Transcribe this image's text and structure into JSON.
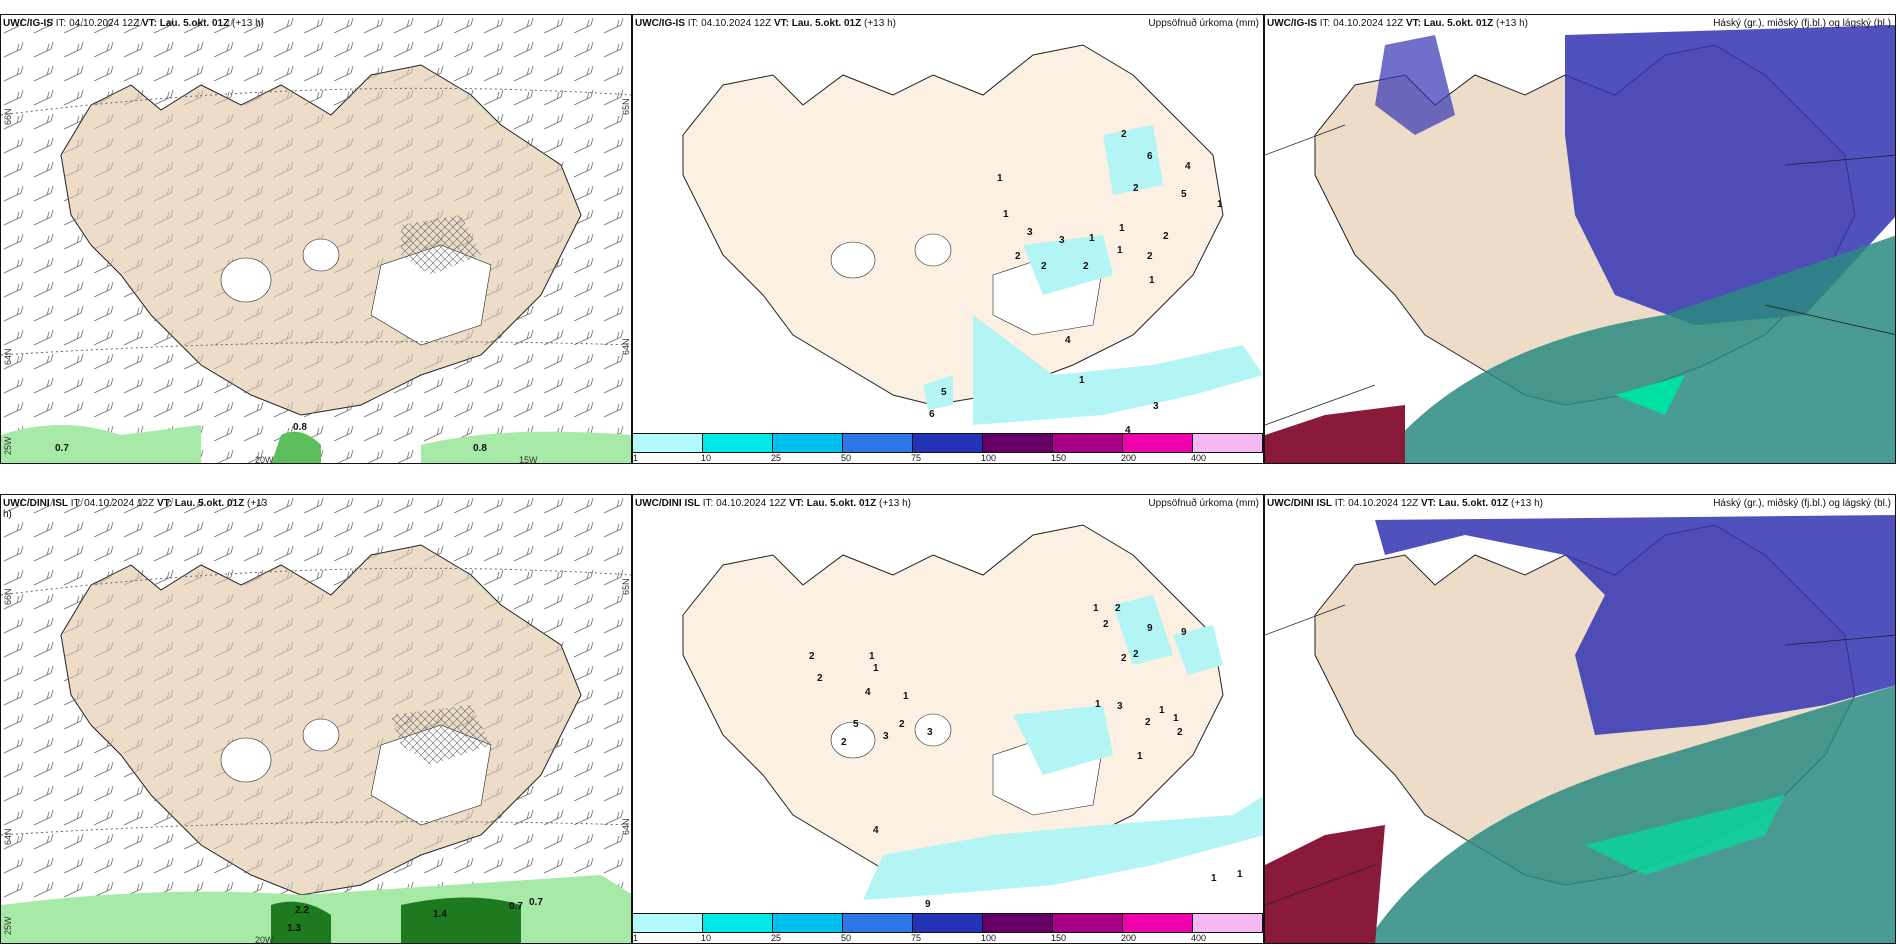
{
  "row1": {
    "wind": {
      "model": "UWC/IG-IS",
      "it_label": "IT:",
      "it": "04.10.2024 12Z",
      "vt_label": "VT:",
      "vt": "Lau. 5.okt. 01Z",
      "lead": "(+13 h)",
      "lat_labels": [
        "66N",
        "64N"
      ],
      "lat_right": [
        "65N",
        "64N"
      ],
      "lon_labels": [
        "20W",
        "15W"
      ],
      "lon_left": "25W",
      "values": [
        "0.7",
        "0.8",
        "0.8"
      ]
    },
    "precip": {
      "model": "UWC/IG-IS",
      "it_label": "IT:",
      "it": "04.10.2024 12Z",
      "vt_label": "VT:",
      "vt": "Lau. 5.okt. 01Z",
      "lead": "(+13 h)",
      "title": "Uppsöfnuð úrkoma (mm)",
      "values": [
        "1",
        "2",
        "6",
        "4",
        "2",
        "5",
        "1",
        "1",
        "3",
        "3",
        "1",
        "1",
        "2",
        "2",
        "2",
        "2",
        "2",
        "1",
        "1",
        "3",
        "4",
        "5",
        "6",
        "1",
        "4"
      ]
    },
    "cloud": {
      "model": "UWC/IG-IS",
      "it_label": "IT:",
      "it": "04.10.2024 12Z",
      "vt_label": "VT:",
      "vt": "Lau. 5.okt. 01Z",
      "lead": "(+13 h)",
      "title": "Háský (gr.), miðský (fj.bl.) og lágský (bl.)"
    }
  },
  "row2": {
    "wind": {
      "model": "UWC/DINI ISL",
      "it_label": "IT:",
      "it": "04.10.2024 12Z",
      "vt_label": "VT:",
      "vt": "Lau. 5.okt. 01Z",
      "lead": "(+13",
      "lead_wrap": "h)",
      "lat_labels": [
        "66N",
        "64N"
      ],
      "lat_right": [
        "65N",
        "64N"
      ],
      "lon_labels": [
        "20W"
      ],
      "lon_left": "25W",
      "values": [
        "2.2",
        "1.3",
        "1.4",
        "0.7",
        "0.7"
      ]
    },
    "precip": {
      "model": "UWC/DINI ISL",
      "it_label": "IT:",
      "it": "04.10.2024 12Z",
      "vt_label": "VT:",
      "vt": "Lau. 5.okt. 01Z",
      "lead": "(+13 h)",
      "title": "Uppsöfnuð úrkoma (mm)",
      "values": [
        "1",
        "2",
        "2",
        "9",
        "9",
        "2",
        "2",
        "1",
        "1",
        "2",
        "2",
        "4",
        "1",
        "3",
        "1",
        "5",
        "2",
        "3",
        "3",
        "2",
        "2",
        "1",
        "1",
        "2",
        "1",
        "4",
        "1",
        "1",
        "9"
      ]
    },
    "cloud": {
      "model": "UWC/DINI ISL",
      "it_label": "IT:",
      "it": "04.10.2024 12Z",
      "vt_label": "VT:",
      "vt": "Lau. 5.okt. 01Z",
      "lead": "(+13 h)",
      "title": "Háský (gr.), miðský (fj.bl.) og lágský (bl.)"
    }
  },
  "colorbar": {
    "ticks": [
      "1",
      "10",
      "25",
      "50",
      "75",
      "100",
      "150",
      "200",
      "400"
    ],
    "colors": [
      "#b3fbfb",
      "#00e8e8",
      "#00c0f0",
      "#2e77e8",
      "#2233b8",
      "#660066",
      "#aa0088",
      "#ee00aa",
      "#f5b8f5"
    ]
  },
  "colors": {
    "land": "#ecdcc8",
    "land_precip": "#fcf0e3",
    "coast": "#222222",
    "light_precip": "#b3f5f5",
    "high_cloud": "#3333b3",
    "mid_cloud": "#2a8a80",
    "low_cloud": "#8a1a3a",
    "rain_green": "#5cbf5c"
  }
}
